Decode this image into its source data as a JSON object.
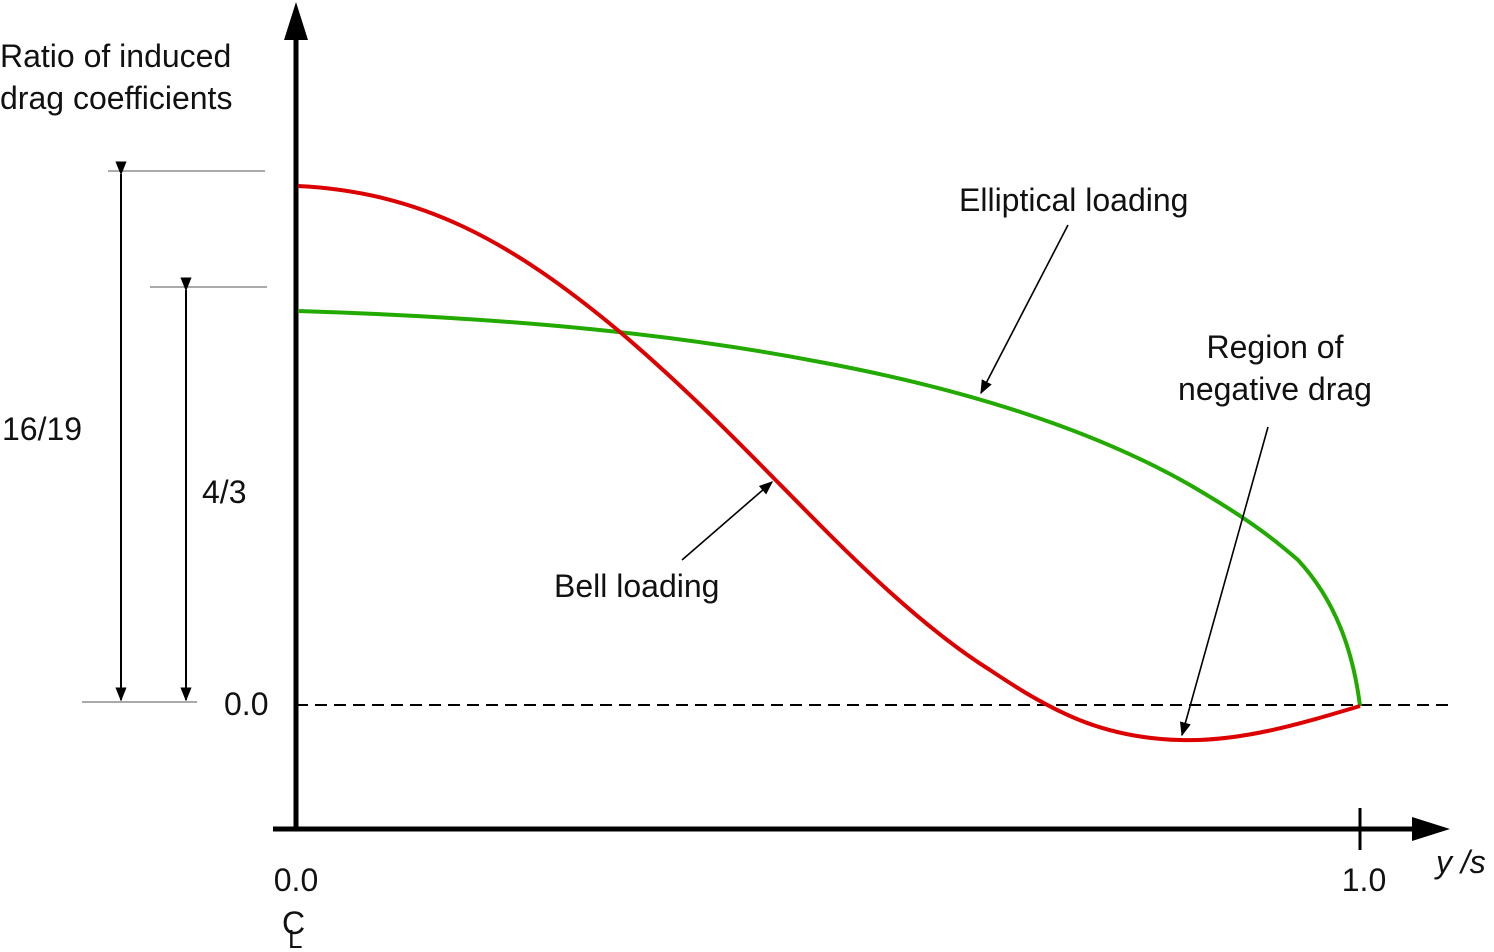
{
  "y_axis_title": {
    "line1": "Ratio of induced",
    "line2": "drag coefficients"
  },
  "x_axis": {
    "label": "y /s",
    "tick_start": "0.0",
    "tick_end": "1.0",
    "centerline_symbol": "CL"
  },
  "zero_line_label": "0.0",
  "dimensions": {
    "bell_ratio": "16/19",
    "elliptical_ratio": "4/3"
  },
  "annotations": {
    "elliptical": "Elliptical loading",
    "bell": "Bell loading",
    "negative_line1": "Region of",
    "negative_line2": "negative drag"
  },
  "colors": {
    "elliptical": "#22aa00",
    "bell": "#dd0000",
    "axes": "#000000"
  },
  "curves": {
    "elliptical": {
      "y0": 0.741,
      "ys": [
        0.0,
        0.2,
        0.4,
        0.6,
        0.8,
        0.95,
        1.0
      ]
    },
    "bell": {
      "y0": 0.97,
      "min_at": 0.83,
      "min_value": -0.065
    }
  }
}
